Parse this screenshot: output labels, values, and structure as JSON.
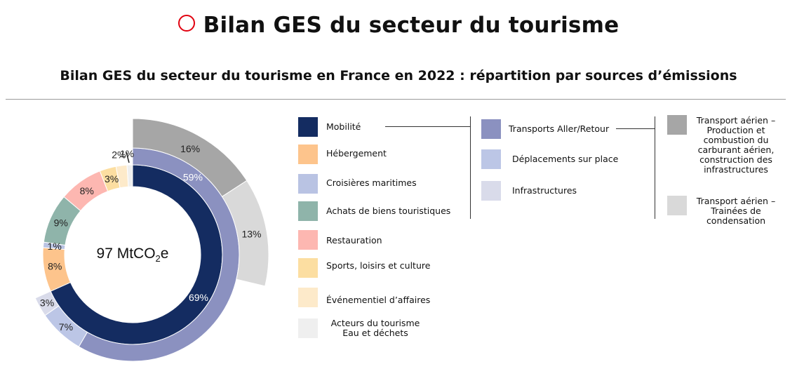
{
  "title": "Bilan GES du secteur du tourisme",
  "subtitle": "Bilan GES du secteur du tourisme en France en 2022 : répartition par sources d’émissions",
  "colors": {
    "accent_red": "#e1000f",
    "mobilite": "#142c61",
    "hebergement": "#fdc48c",
    "croisieres": "#b9c3e3",
    "achats": "#8fb4aa",
    "restauration": "#fdb7b1",
    "sports": "#fcdea1",
    "evenementiel": "#fdeaca",
    "acteurs": "#efefef",
    "transports_ar": "#8b91c0",
    "deplacements": "#bcc6e6",
    "infrastructures": "#d9dbea",
    "aerien_prod": "#a6a6a6",
    "aerien_trainees": "#d9d9d9"
  },
  "chart_data": {
    "type": "pie",
    "subtype": "multi-level donut",
    "center_label": {
      "value": "97 MtCO",
      "sub": "2",
      "unit": "e"
    },
    "inner_ring": [
      {
        "name": "Mobilité",
        "value": 69,
        "label": "69%",
        "color": "#142c61"
      },
      {
        "name": "Hébergement",
        "value": 8,
        "label": "8%",
        "color": "#fdc48c"
      },
      {
        "name": "Croisières maritimes",
        "value": 1,
        "label": "1%",
        "color": "#b9c3e3"
      },
      {
        "name": "Achats de biens touristiques",
        "value": 9,
        "label": "9%",
        "color": "#8fb4aa"
      },
      {
        "name": "Restauration",
        "value": 8,
        "label": "8%",
        "color": "#fdb7b1"
      },
      {
        "name": "Sports, loisirs et culture",
        "value": 3,
        "label": "3%",
        "color": "#fcdea1"
      },
      {
        "name": "Événementiel d’affaires",
        "value": 2,
        "label": "2%",
        "color": "#fdeaca"
      },
      {
        "name": "Acteurs du tourisme Eau et déchets",
        "value": 1,
        "label": "1%",
        "color": "#efefef"
      }
    ],
    "middle_ring": [
      {
        "name": "Transports Aller/Retour",
        "value": 59,
        "label": "59%",
        "color": "#8b91c0"
      },
      {
        "name": "Déplacements sur place",
        "value": 7,
        "label": "7%",
        "color": "#bcc6e6"
      },
      {
        "name": "Infrastructures",
        "value": 3,
        "label": "3%",
        "color": "#d9dbea"
      }
    ],
    "outer_ring": [
      {
        "name": "Transport aérien – Production et combustion du carburant aérien, construction des infrastructures",
        "value": 16,
        "label": "16%",
        "color": "#a6a6a6"
      },
      {
        "name": "Transport aérien – Trainées de condensation",
        "value": 13,
        "label": "13%",
        "color": "#d9d9d9"
      }
    ]
  },
  "legend": {
    "col1": [
      "Mobilité",
      "Hébergement",
      "Croisières maritimes",
      "Achats de biens touristiques",
      "Restauration",
      "Sports, loisirs et culture",
      "Événementiel d’affaires",
      "Acteurs du tourisme",
      "Eau et déchets"
    ],
    "col2": [
      "Transports Aller/Retour",
      "Déplacements sur place",
      "Infrastructures"
    ],
    "col3": [
      "Transport aérien –",
      "Production et",
      "combustion du",
      "carburant aérien,",
      "construction des",
      "infrastructures",
      "Transport aérien –",
      "Trainées de",
      "condensation"
    ]
  }
}
